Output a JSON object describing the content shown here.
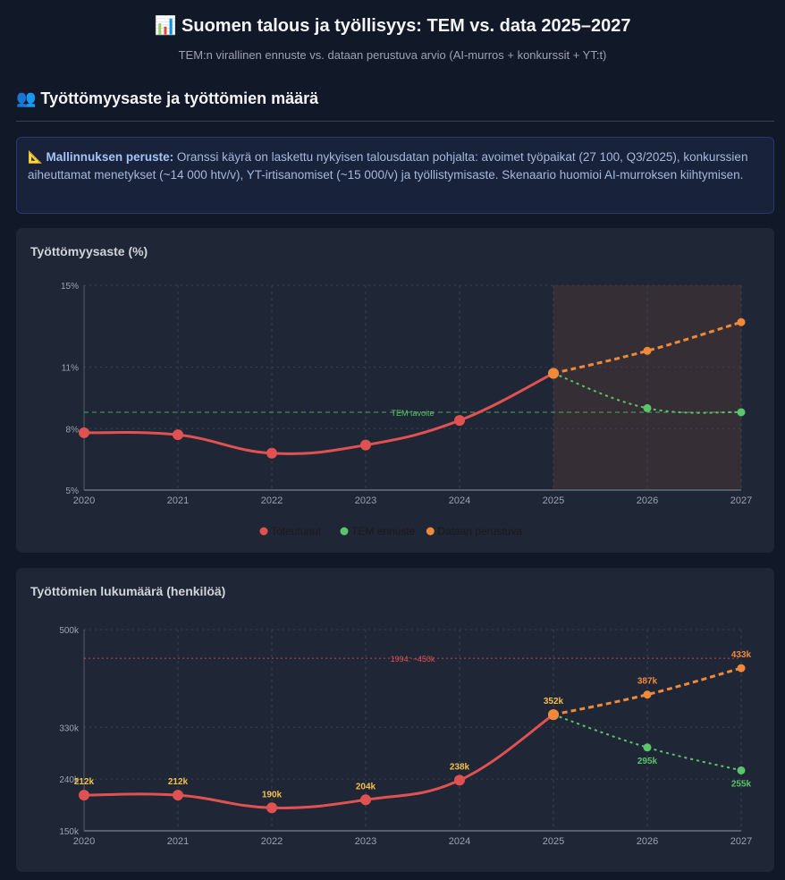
{
  "header": {
    "icon": "bar-chart-icon",
    "title": "📊 Suomen talous ja työllisyys: TEM vs. data 2025–2027",
    "subtitle": "TEM:n virallinen ennuste vs. dataan perustuva arvio (AI-murros + konkurssit + YT:t)"
  },
  "section": {
    "icon": "people-icon",
    "title": "👥 Työttömyysaste ja työttömien määrä"
  },
  "info": {
    "icon": "triangle-ruler-icon",
    "label": "📐 Mallinnuksen peruste:",
    "text": " Oranssi käyrä on laskettu nykyisen talousdatan pohjalta: avoimet työpaikat (27 100, Q3/2025), konkurssien aiheuttamat menetykset (~14 000 htv/v), YT-irtisanomiset (~15 000/v) ja työllistymisaste. Skenaario huomioi AI-murroksen kiihtymisen."
  },
  "colors": {
    "actual": "#e05252",
    "tem": "#5cc46a",
    "data": "#f08a3a",
    "label": "#f5c04a"
  },
  "chart_data": [
    {
      "type": "line",
      "title": "Työttömyysaste (%)",
      "x": [
        2020,
        2021,
        2022,
        2023,
        2024,
        2025,
        2026,
        2027
      ],
      "yticks": [
        5,
        8,
        11,
        15
      ],
      "ytick_labels": [
        "5%",
        "8%",
        "11%",
        "15%"
      ],
      "ylim": [
        5,
        15
      ],
      "grid": true,
      "legend": "bottom",
      "series": [
        {
          "name": "Toteutunut",
          "x": [
            2020,
            2021,
            2022,
            2023,
            2024,
            2025
          ],
          "values": [
            7.8,
            7.7,
            6.8,
            7.2,
            8.4,
            10.7
          ]
        },
        {
          "name": "TEM ennuste",
          "x": [
            2025,
            2026,
            2027
          ],
          "values": [
            10.7,
            9.0,
            8.8
          ]
        },
        {
          "name": "Dataan perustuva",
          "x": [
            2025,
            2026,
            2027
          ],
          "values": [
            10.7,
            11.8,
            13.2
          ]
        }
      ],
      "reference": {
        "label": "TEM tavoite",
        "value": 8.8
      },
      "shaded_from": 2025
    },
    {
      "type": "line",
      "title": "Työttömien lukumäärä (henkilöä)",
      "x": [
        2020,
        2021,
        2022,
        2023,
        2024,
        2025,
        2026,
        2027
      ],
      "yticks": [
        150,
        240,
        330,
        500
      ],
      "ytick_labels": [
        "150k",
        "240k",
        "330k",
        "500k"
      ],
      "ylim": [
        150,
        500
      ],
      "grid": true,
      "series": [
        {
          "name": "Toteutunut",
          "x": [
            2020,
            2021,
            2022,
            2023,
            2024,
            2025
          ],
          "values": [
            212,
            212,
            190,
            204,
            238,
            352
          ],
          "labels": [
            "212k",
            "212k",
            "190k",
            "204k",
            "238k",
            "352k"
          ]
        },
        {
          "name": "TEM ennuste",
          "x": [
            2025,
            2026,
            2027
          ],
          "values": [
            352,
            295,
            255
          ],
          "labels": [
            "352k",
            "295k",
            "255k"
          ]
        },
        {
          "name": "Dataan perustuva",
          "x": [
            2025,
            2026,
            2027
          ],
          "values": [
            352,
            387,
            433
          ],
          "labels": [
            "",
            "387k",
            "433k"
          ]
        }
      ],
      "reference": {
        "label": "1994: ~450k",
        "value": 450
      }
    }
  ]
}
